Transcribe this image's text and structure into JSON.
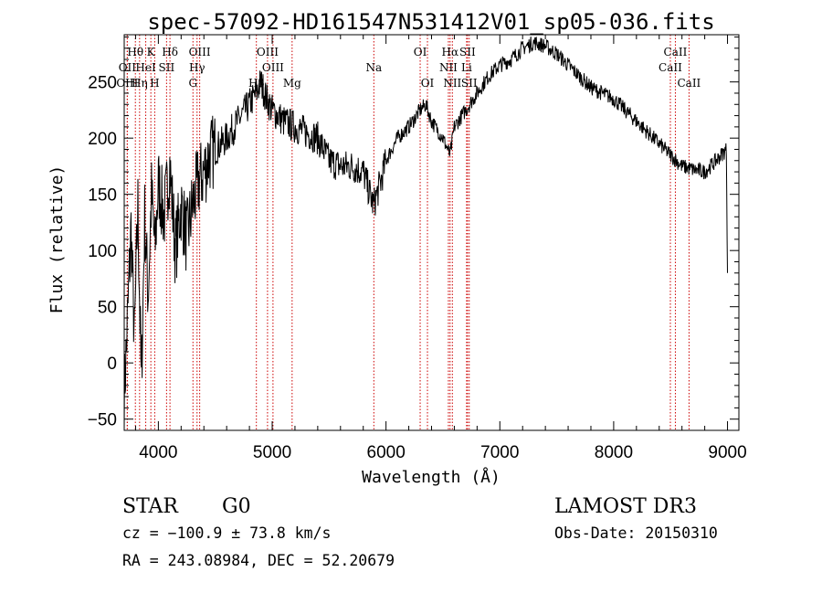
{
  "chart_data": {
    "type": "line",
    "title": "spec-57092-HD161547N531412V01_sp05-036.fits",
    "xlabel": "Wavelength (Å)",
    "ylabel": "Flux (relative)",
    "xlim": [
      3700,
      9100
    ],
    "ylim": [
      -60,
      292
    ],
    "xticks": [
      4000,
      5000,
      6000,
      7000,
      8000,
      9000
    ],
    "yticks": [
      -50,
      0,
      50,
      100,
      150,
      200,
      250
    ],
    "series": [
      {
        "x": [
          3700,
          3730,
          3760,
          3790,
          3820,
          3850,
          3880,
          3910,
          3940,
          3970,
          4000,
          4050,
          4100,
          4150,
          4200,
          4250,
          4300,
          4350,
          4400,
          4450,
          4500,
          4600,
          4700,
          4800,
          4861,
          4900,
          4950,
          5000,
          5100,
          5200,
          5300,
          5400,
          5500,
          5600,
          5700,
          5800,
          5890,
          5950,
          6000,
          6100,
          6200,
          6300,
          6350,
          6400,
          6500,
          6563,
          6600,
          6700,
          6800,
          6900,
          7000,
          7100,
          7200,
          7300,
          7400,
          7500,
          7600,
          7700,
          7800,
          7900,
          8000,
          8100,
          8200,
          8300,
          8400,
          8500,
          8600,
          8700,
          8800,
          8900,
          8990,
          9000
        ],
        "y": [
          -30,
          40,
          120,
          20,
          140,
          -20,
          130,
          60,
          150,
          100,
          160,
          130,
          175,
          100,
          140,
          110,
          140,
          160,
          170,
          185,
          190,
          200,
          215,
          230,
          240,
          250,
          235,
          225,
          215,
          210,
          205,
          200,
          180,
          175,
          175,
          170,
          140,
          160,
          180,
          200,
          210,
          225,
          230,
          215,
          200,
          185,
          210,
          225,
          240,
          255,
          265,
          270,
          280,
          285,
          282,
          275,
          265,
          255,
          245,
          240,
          235,
          225,
          215,
          205,
          195,
          185,
          175,
          172,
          170,
          180,
          190,
          80
        ]
      }
    ],
    "lines": [
      {
        "label": "Hθ",
        "wl": 3798,
        "row": 1
      },
      {
        "label": "OII",
        "wl": 3727,
        "row": 2
      },
      {
        "label": "OIII",
        "wl": 3727,
        "row": 3
      },
      {
        "label": "K",
        "wl": 3934,
        "row": 1
      },
      {
        "label": "HeI",
        "wl": 3889,
        "row": 2
      },
      {
        "label": "Hη",
        "wl": 3835,
        "row": 3
      },
      {
        "label": "H",
        "wl": 3968,
        "row": 3
      },
      {
        "label": "Hδ",
        "wl": 4102,
        "row": 1
      },
      {
        "label": "SII",
        "wl": 4072,
        "row": 2
      },
      {
        "label": "OIII",
        "wl": 4363,
        "row": 1
      },
      {
        "label": "Hγ",
        "wl": 4340,
        "row": 2
      },
      {
        "label": "G",
        "wl": 4304,
        "row": 3
      },
      {
        "label": "Hβ",
        "wl": 4861,
        "row": 3
      },
      {
        "label": "OIII",
        "wl": 4959,
        "row": 1
      },
      {
        "label": "OIII",
        "wl": 5007,
        "row": 2
      },
      {
        "label": "Mg",
        "wl": 5175,
        "row": 3
      },
      {
        "label": "Na",
        "wl": 5893,
        "row": 2
      },
      {
        "label": "OI",
        "wl": 6300,
        "row": 1
      },
      {
        "label": "OI",
        "wl": 6364,
        "row": 3
      },
      {
        "label": "Hα",
        "wl": 6563,
        "row": 1
      },
      {
        "label": "NII",
        "wl": 6548,
        "row": 2
      },
      {
        "label": "NII",
        "wl": 6583,
        "row": 3
      },
      {
        "label": "SII",
        "wl": 6716,
        "row": 1
      },
      {
        "label": "Li",
        "wl": 6708,
        "row": 2
      },
      {
        "label": "SII",
        "wl": 6731,
        "row": 3
      },
      {
        "label": "CaII",
        "wl": 8542,
        "row": 1
      },
      {
        "label": "CaII",
        "wl": 8498,
        "row": 2
      },
      {
        "label": "CaII",
        "wl": 8662,
        "row": 3
      }
    ],
    "line_color": "#cc0000"
  },
  "footer": {
    "class_label": "STAR",
    "subclass": "G0",
    "survey": "LAMOST DR3",
    "cz": "cz = −100.9 ± 73.8 km/s",
    "obs_date": "Obs-Date: 20150310",
    "coords": "RA = 243.08984, DEC =  52.20679"
  }
}
